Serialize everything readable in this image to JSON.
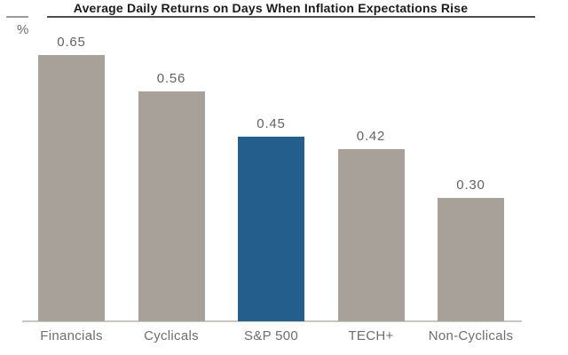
{
  "header": {
    "title": "Average Daily Returns on Days When Inflation Expectations Rise",
    "unit_label": "%"
  },
  "colors": {
    "background": "#ffffff",
    "bar_default": "#a8a19a",
    "bar_highlight": "#245e8d",
    "axis_line": "#c9c7c4",
    "title_underline": "#4d4d4d",
    "unit_tick": "#9a9a9a",
    "title_text": "#1c1c1c",
    "value_label_text": "#636363",
    "category_label_text": "#6e6e6e"
  },
  "chart_data": {
    "type": "bar",
    "title": "Average Daily Returns on Days When Inflation Expectations Rise",
    "xlabel": "",
    "ylabel": "%",
    "categories": [
      "Financials",
      "Cyclicals",
      "S&P 500",
      "TECH+",
      "Non-Cyclicals"
    ],
    "values": [
      0.65,
      0.56,
      0.45,
      0.42,
      0.3
    ],
    "value_labels": [
      "0.65",
      "0.56",
      "0.45",
      "0.42",
      "0.30"
    ],
    "highlight_category": "S&P 500",
    "highlight_index": 2,
    "ylim": [
      0,
      0.72
    ],
    "grid": false,
    "legend": "none",
    "data_labels": "above bars",
    "y_axis_ticks": "none"
  }
}
